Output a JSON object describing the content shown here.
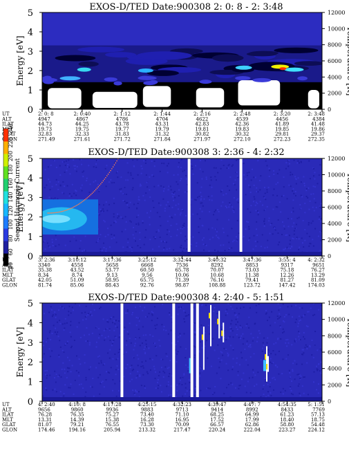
{
  "chart_data": [
    {
      "type": "heatmap",
      "title": "EXOS-D/TED   Date:900308  2: 0: 8 - 2: 3:48",
      "ylabel": "Energy [eV]",
      "ylabel_right": "Temperature [K]",
      "ylim": [
        0,
        5
      ],
      "ylim_right": [
        0,
        12000
      ],
      "yticks": [
        "0",
        "1",
        "2",
        "3",
        "4",
        "5"
      ],
      "yticks_right": [
        "0",
        "2000",
        "4000",
        "6000",
        "8000",
        "10000",
        "12000"
      ],
      "gaps": [],
      "pattern": "spectrogram",
      "row_labels": [
        "UT",
        "ALT",
        "ILAT",
        "MLT",
        "GLAT",
        "GLON"
      ],
      "columns": [
        [
          "2: 0: 8",
          "4947",
          "44.73",
          "19.73",
          "32.83",
          "271.49"
        ],
        [
          "2: 0:40",
          "4867",
          "44.25",
          "19.75",
          "32.33",
          "271.61"
        ],
        [
          "2: 1:12",
          "4786",
          "43.78",
          "19.77",
          "31.83",
          "271.72"
        ],
        [
          "2: 1:44",
          "4704",
          "43.31",
          "19.79",
          "31.32",
          "271.84"
        ],
        [
          "2: 2:16",
          "4622",
          "42.83",
          "19.81",
          "30.82",
          "271.97"
        ],
        [
          "2: 2:48",
          "4539",
          "42.36",
          "19.83",
          "30.32",
          "272.10"
        ],
        [
          "2: 3:20",
          "4456",
          "41.89",
          "19.85",
          "29.81",
          "272.23"
        ],
        [
          "2: 3:48",
          "4384",
          "41.48",
          "19.86",
          "29.37",
          "272.35"
        ]
      ]
    },
    {
      "type": "heatmap",
      "title": "EXOS-D/TED   Date:900308  3: 2:36 - 4: 2:32",
      "ylabel": "Energy [eV]",
      "ylabel_right": "Temperature [K]",
      "ylim": [
        0,
        5
      ],
      "ylim_right": [
        0,
        12000
      ],
      "yticks": [
        "0",
        "1",
        "2",
        "3",
        "4",
        "5"
      ],
      "yticks_right": [
        "0",
        "2000",
        "4000",
        "6000",
        "8000",
        "10000",
        "12000"
      ],
      "gaps": [
        0.525,
        0.71
      ],
      "pattern": "quiet",
      "row_labels": [
        "UT",
        "ALT",
        "ILAT",
        "MLT",
        "GLAT",
        "GLON"
      ],
      "columns": [
        [
          "3: 2:36",
          "3340",
          "35.38",
          "8.34",
          "42.05",
          "81.74"
        ],
        [
          "3:10:12",
          "4558",
          "43.52",
          "8.74",
          "51.09",
          "85.06"
        ],
        [
          "3:17:36",
          "5658",
          "53.77",
          "9.13",
          "58.95",
          "88.43"
        ],
        [
          "3:25:12",
          "6668",
          "60.50",
          "9.56",
          "65.75",
          "92.76"
        ],
        [
          "3:32:44",
          "7536",
          "65.78",
          "10.06",
          "71.39",
          "98.87"
        ],
        [
          "3:40:32",
          "8292",
          "70.07",
          "10.68",
          "76.16",
          "108.88"
        ],
        [
          "3:47:36",
          "8853",
          "73.03",
          "11.38",
          "79.41",
          "123.72"
        ],
        [
          "3:55: 4",
          "9317",
          "75.18",
          "12.26",
          "81.27",
          "147.42"
        ],
        [
          "4: 2:32",
          "9651",
          "76.27",
          "13.29",
          "81.09",
          "174.03"
        ]
      ]
    },
    {
      "type": "heatmap",
      "title": "EXOS-D/TED   Date:900308  4: 2:40 - 5: 1:51",
      "ylabel": "Energy [eV]",
      "ylabel_right": "Temperature [K]",
      "ylim": [
        0,
        5
      ],
      "ylim_right": [
        0,
        12000
      ],
      "yticks": [
        "0",
        "1",
        "2",
        "3",
        "4",
        "5"
      ],
      "yticks_right": [
        "0",
        "2000",
        "4000",
        "6000",
        "8000",
        "10000",
        "12000"
      ],
      "gaps": [
        0.285,
        0.47,
        0.535,
        0.555
      ],
      "pattern": "quiet",
      "row_labels": [
        "UT",
        "ALT",
        "ILAT",
        "MLT",
        "GLAT",
        "GLON"
      ],
      "columns": [
        [
          "4: 2:40",
          "9656",
          "76.28",
          "13.31",
          "81.07",
          "174.46"
        ],
        [
          "4:10: 8",
          "9860",
          "76.35",
          "14.39",
          "79.21",
          "194.16"
        ],
        [
          "4:17:28",
          "9936",
          "75.27",
          "15.38",
          "76.55",
          "205.94"
        ],
        [
          "4:25:15",
          "9883",
          "73.40",
          "16.28",
          "73.30",
          "213.32"
        ],
        [
          "4:32:23",
          "9713",
          "71.10",
          "16.95",
          "70.09",
          "217.47"
        ],
        [
          "4:39:47",
          "9414",
          "68.25",
          "17.52",
          "66.57",
          "220.24"
        ],
        [
          "4:47: 7",
          "8992",
          "64.99",
          "17.99",
          "62.86",
          "222.04"
        ],
        [
          "4:54:35",
          "8433",
          "61.23",
          "18.40",
          "58.80",
          "223.27"
        ],
        [
          "5: 1:51",
          "7769",
          "57.13",
          "18.75",
          "54.48",
          "224.12"
        ]
      ]
    }
  ],
  "colorbar": {
    "label": "Second Harmonic Current",
    "ticks": [
      "40",
      "60",
      "80",
      "100",
      "120",
      "140",
      "160",
      "180",
      "200",
      "220",
      "240"
    ],
    "range": [
      40,
      240
    ]
  },
  "colors": {
    "background_field": "#2a2ab8",
    "gap": "#ffffff"
  }
}
